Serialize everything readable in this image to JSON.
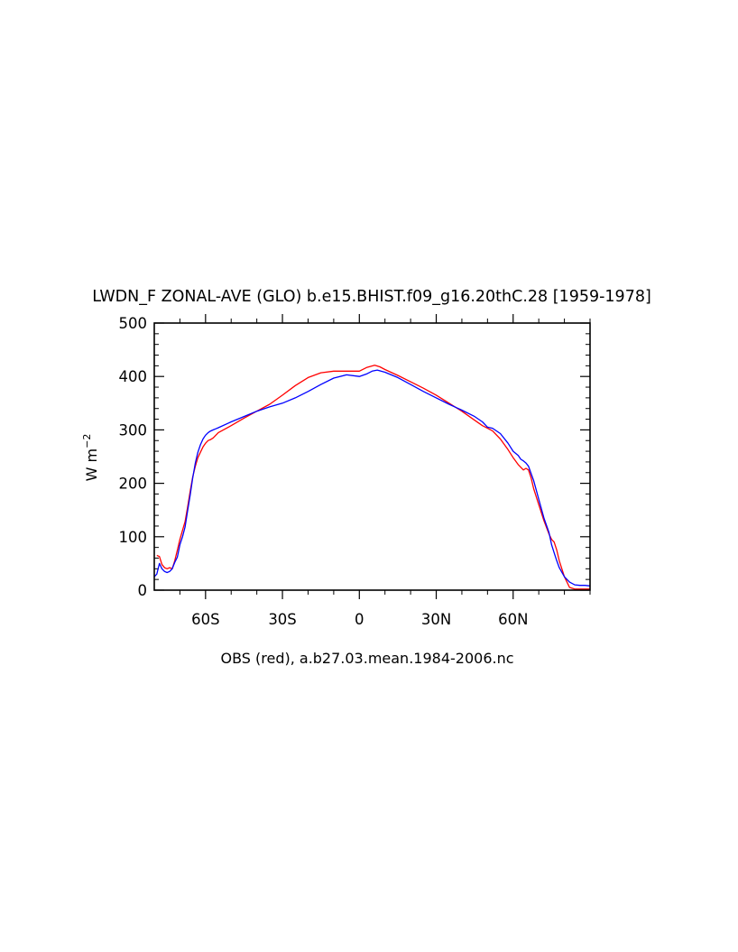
{
  "chart_data": {
    "type": "line",
    "title": "LWDN_F ZONAL-AVE (GLO) b.e15.BHIST.f09_g16.20thC.28 [1959-1978]",
    "ylabel_base": "W m",
    "ylabel_exp": "−2",
    "xlabel": "OBS (red), a.b27.03.mean.1984-2006.nc",
    "xlim": [
      -80,
      90
    ],
    "ylim": [
      0,
      500
    ],
    "xticks": [
      -60,
      -30,
      0,
      30,
      60
    ],
    "xtick_labels": [
      "60S",
      "30S",
      "0",
      "30N",
      "60N"
    ],
    "yticks": [
      0,
      100,
      200,
      300,
      400,
      500
    ],
    "ytick_labels": [
      "0",
      "100",
      "200",
      "300",
      "400",
      "500"
    ],
    "series": [
      {
        "name": "OBS",
        "color": "#ff0000",
        "x": [
          -79,
          -78,
          -77,
          -76,
          -75,
          -74,
          -73,
          -72,
          -71,
          -70,
          -69,
          -68,
          -67,
          -66,
          -65,
          -64,
          -63,
          -62,
          -61,
          -60,
          -59,
          -58,
          -57,
          -56,
          -55,
          -50,
          -45,
          -40,
          -35,
          -30,
          -25,
          -20,
          -15,
          -10,
          -5,
          0,
          3,
          6,
          8,
          10,
          15,
          20,
          25,
          30,
          35,
          40,
          45,
          48,
          50,
          52,
          55,
          58,
          60,
          62,
          64,
          65,
          66,
          67,
          68,
          70,
          72,
          74,
          75,
          76,
          77,
          78,
          80,
          82,
          84,
          86,
          88,
          90
        ],
        "y": [
          65,
          63,
          48,
          42,
          40,
          42,
          40,
          55,
          75,
          95,
          112,
          128,
          155,
          185,
          212,
          232,
          248,
          258,
          268,
          275,
          280,
          282,
          285,
          290,
          295,
          308,
          322,
          335,
          348,
          365,
          383,
          398,
          407,
          410,
          410,
          410,
          417,
          421,
          418,
          413,
          402,
          390,
          378,
          365,
          350,
          335,
          318,
          308,
          303,
          298,
          283,
          263,
          248,
          235,
          225,
          228,
          225,
          210,
          190,
          160,
          130,
          105,
          95,
          90,
          75,
          55,
          25,
          5,
          2,
          2,
          2,
          2
        ]
      },
      {
        "name": "",
        "color": "#0000ff",
        "x": [
          -80,
          -79,
          -78,
          -77,
          -76,
          -75,
          -74,
          -73,
          -72,
          -71,
          -70,
          -69,
          -68,
          -67,
          -66,
          -65,
          -64,
          -63,
          -62,
          -61,
          -60,
          -59,
          -58,
          -57,
          -56,
          -55,
          -50,
          -45,
          -40,
          -35,
          -30,
          -25,
          -20,
          -15,
          -10,
          -5,
          0,
          3,
          5,
          7,
          10,
          15,
          20,
          25,
          30,
          35,
          40,
          45,
          48,
          50,
          52,
          55,
          58,
          60,
          62,
          63,
          64,
          65,
          66,
          68,
          70,
          72,
          74,
          75,
          76,
          77,
          78,
          80,
          82,
          84,
          86,
          88,
          90
        ],
        "y": [
          25,
          30,
          50,
          40,
          35,
          33,
          35,
          40,
          52,
          62,
          85,
          100,
          118,
          148,
          178,
          210,
          238,
          258,
          272,
          283,
          290,
          295,
          298,
          300,
          302,
          304,
          315,
          325,
          335,
          343,
          350,
          360,
          372,
          385,
          397,
          403,
          400,
          405,
          410,
          412,
          408,
          398,
          385,
          372,
          360,
          348,
          337,
          325,
          315,
          305,
          303,
          293,
          275,
          260,
          252,
          245,
          242,
          238,
          232,
          205,
          170,
          135,
          108,
          85,
          70,
          55,
          42,
          25,
          15,
          10,
          9,
          9,
          8
        ]
      }
    ],
    "grid": false,
    "legend": "none"
  }
}
